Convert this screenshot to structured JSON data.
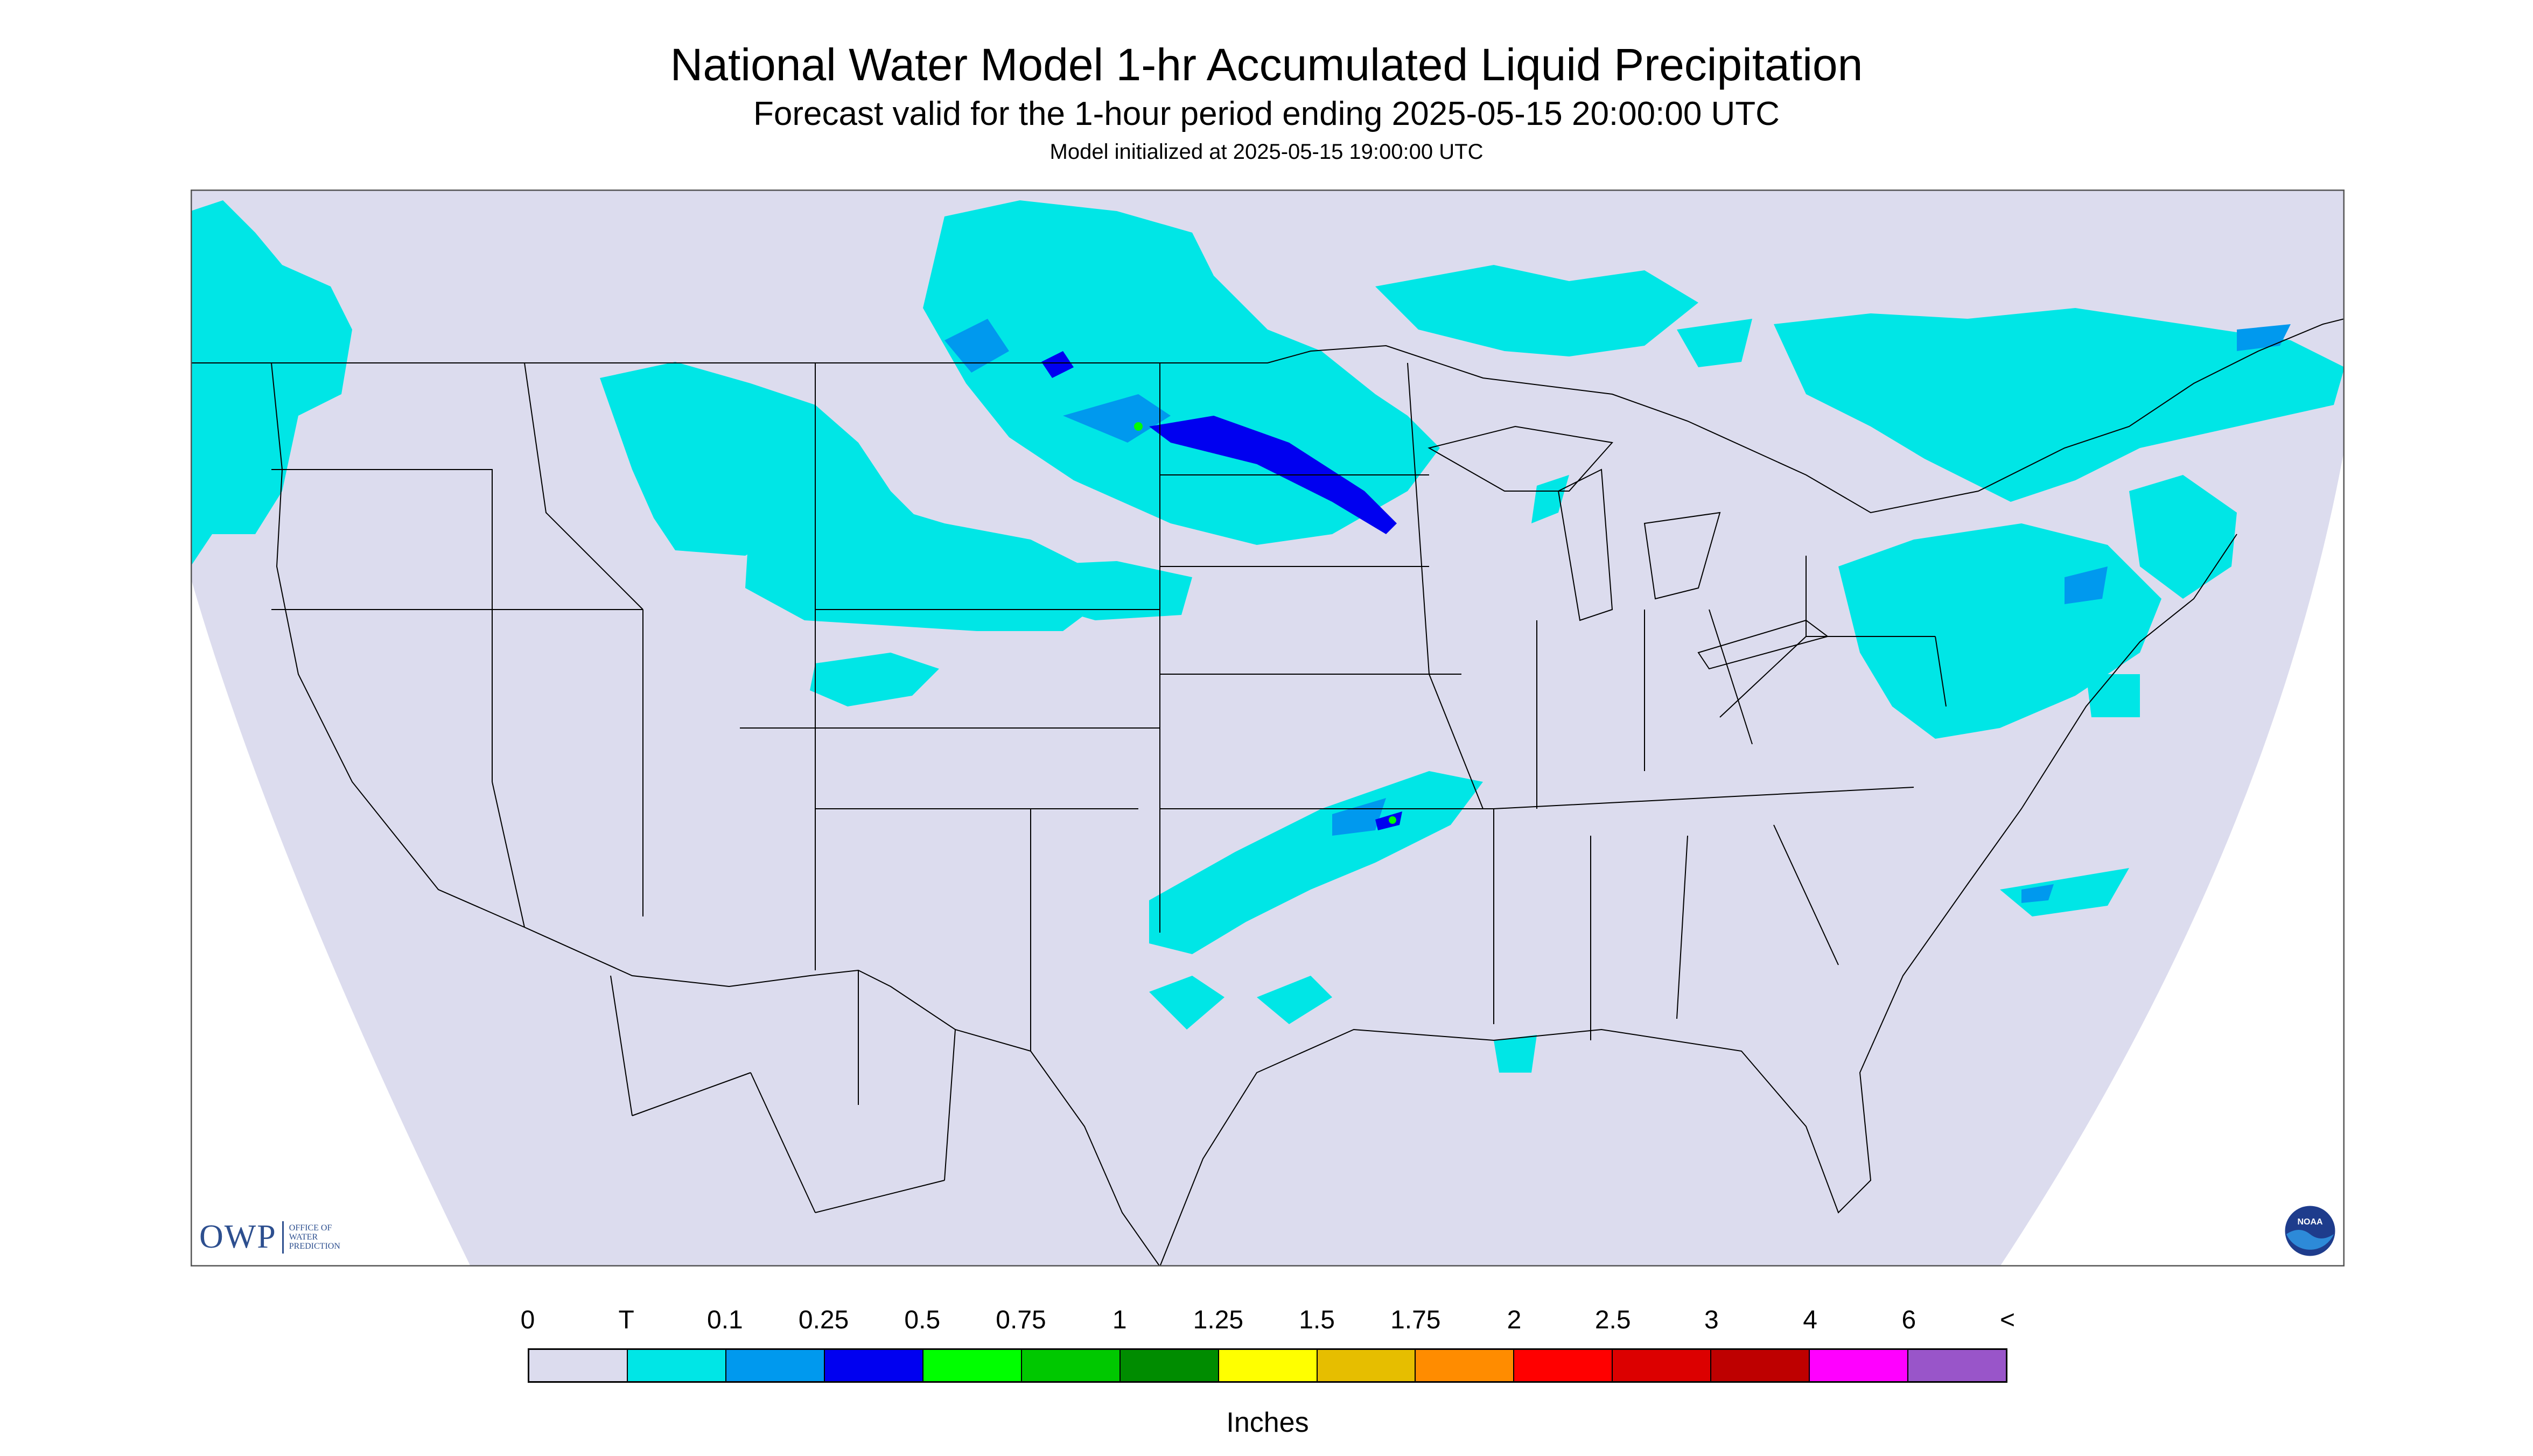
{
  "header": {
    "title": "National Water Model 1-hr Accumulated Liquid Precipitation",
    "subtitle": "Forecast valid for the 1-hour period ending 2025-05-15 20:00:00 UTC",
    "init": "Model initialized at 2025-05-15 19:00:00 UTC"
  },
  "map": {
    "region": "Contiguous United States",
    "projection": "Lambert Conformal Conic",
    "background_color": "#dcdcee",
    "border_color": "#000000"
  },
  "legend": {
    "labels": [
      "0",
      "T",
      "0.1",
      "0.25",
      "0.5",
      "0.75",
      "1",
      "1.25",
      "1.5",
      "1.75",
      "2",
      "2.5",
      "3",
      "4",
      "6",
      "<"
    ],
    "colors": [
      "#dcdcee",
      "#00e6e6",
      "#0099ee",
      "#0000f0",
      "#00ff00",
      "#00c800",
      "#008c00",
      "#ffff00",
      "#e6be00",
      "#ff8c00",
      "#ff0000",
      "#dc0000",
      "#be0000",
      "#ff00ff",
      "#9955c9"
    ],
    "units": "Inches"
  },
  "logos": {
    "owp_main": "OWP",
    "owp_sub": [
      "OFFICE OF",
      "WATER",
      "PREDICTION"
    ],
    "noaa_text": "NOAA"
  }
}
